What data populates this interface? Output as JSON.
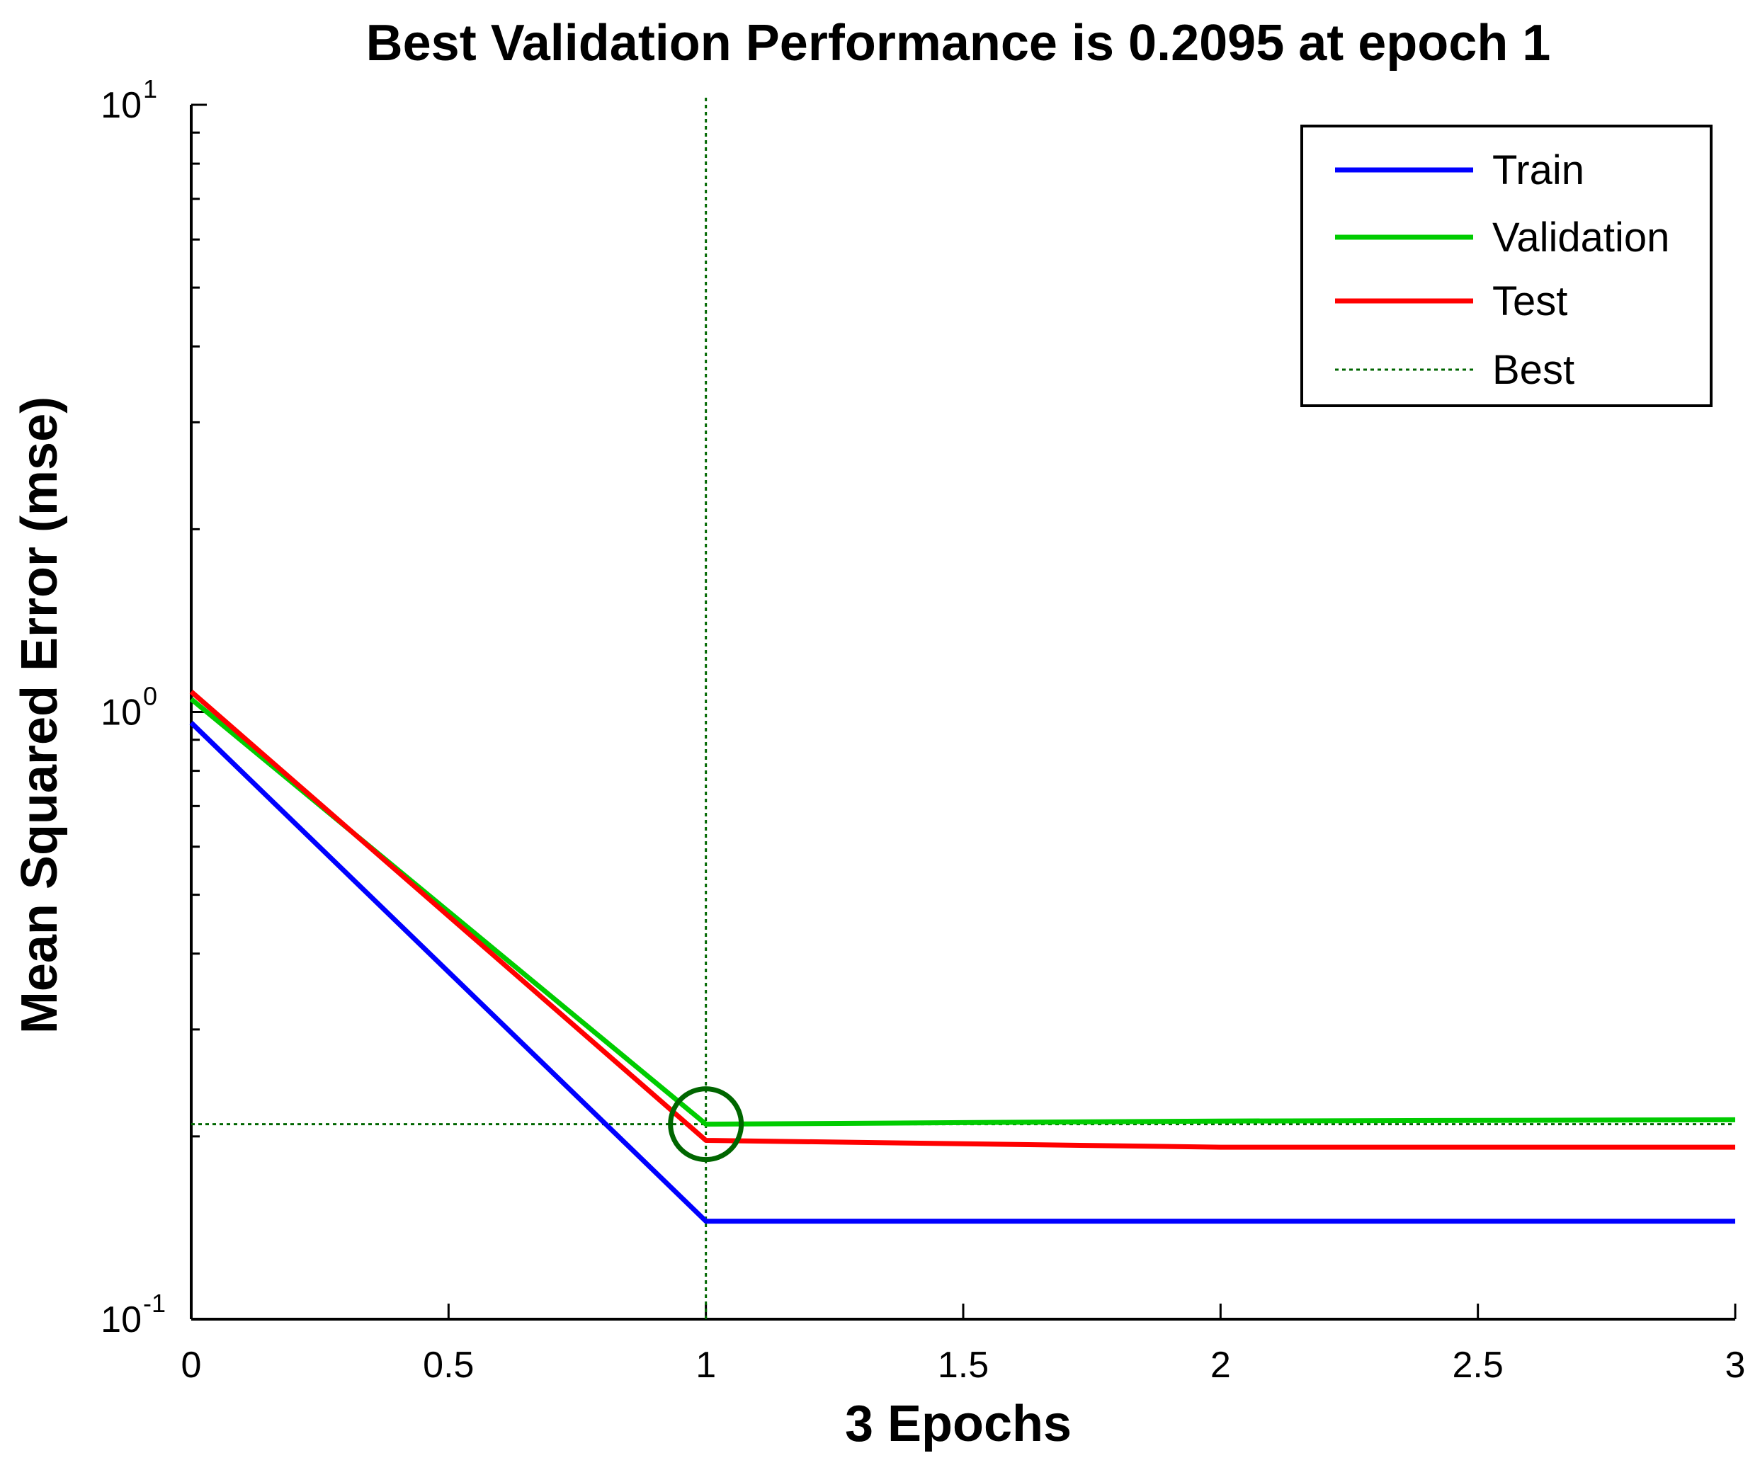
{
  "chart_data": {
    "type": "line",
    "title": "Best Validation Performance is 0.2095 at epoch 1",
    "xlabel": "3 Epochs",
    "ylabel": "Mean Squared Error  (mse)",
    "yscale": "log",
    "xlim": [
      0,
      3
    ],
    "ylim": [
      0.1,
      10
    ],
    "x_ticks": [
      "0",
      "0.5",
      "1",
      "1.5",
      "2",
      "2.5",
      "3"
    ],
    "x_tick_values": [
      0,
      0.5,
      1,
      1.5,
      2,
      2.5,
      3
    ],
    "y_ticks": [
      {
        "value": 0.1,
        "base": "10",
        "exp": "-1"
      },
      {
        "value": 1,
        "base": "10",
        "exp": "0"
      },
      {
        "value": 10,
        "base": "10",
        "exp": "1"
      }
    ],
    "x": [
      0,
      1,
      2,
      3
    ],
    "series": [
      {
        "name": "Train",
        "color": "#0000ff",
        "values": [
          0.96,
          0.145,
          0.145,
          0.145
        ]
      },
      {
        "name": "Validation",
        "color": "#00cc00",
        "values": [
          1.05,
          0.2095,
          0.212,
          0.213
        ]
      },
      {
        "name": "Test",
        "color": "#ff0000",
        "values": [
          1.08,
          0.197,
          0.192,
          0.192
        ]
      }
    ],
    "best": {
      "name": "Best",
      "color": "#006600",
      "epoch": 1,
      "value": 0.2095
    },
    "legend_position": "top-right"
  }
}
